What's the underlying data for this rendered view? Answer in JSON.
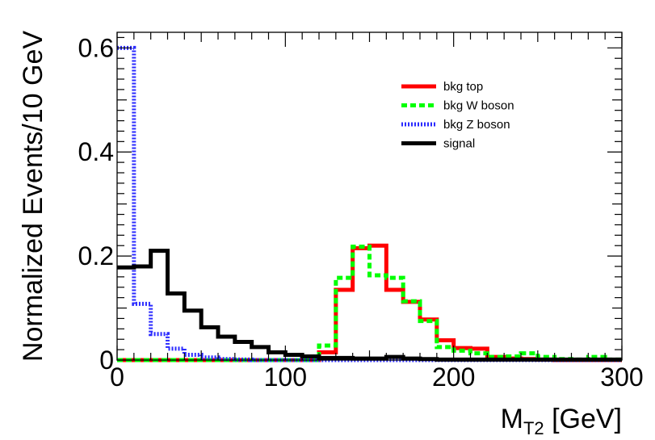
{
  "chart_data": {
    "type": "histogram",
    "xlabel_main": "M",
    "xlabel_sub": "T2",
    "xlabel_unit": " [GeV]",
    "ylabel": "Normalized Events/10 GeV",
    "xlim": [
      0,
      300
    ],
    "ylim": [
      0,
      0.63
    ],
    "bin_width": 10,
    "x_ticks": [
      0,
      100,
      200,
      300
    ],
    "x_tick_labels": [
      "0",
      "100",
      "200",
      "300"
    ],
    "y_ticks": [
      0,
      0.2,
      0.4,
      0.6
    ],
    "y_tick_labels": [
      "0",
      "0.2",
      "0.4",
      "0.6"
    ],
    "series": [
      {
        "name": "bkg top",
        "color": "#ff0000",
        "style": "solid",
        "values": [
          0,
          0,
          0,
          0,
          0,
          0,
          0,
          0,
          0,
          0,
          0,
          0,
          0.015,
          0.135,
          0.215,
          0.22,
          0.135,
          0.112,
          0.078,
          0.038,
          0.023,
          0.022,
          0.006,
          0.003,
          0.002,
          0.001,
          0,
          0,
          0,
          0
        ]
      },
      {
        "name": "bkg W boson",
        "color": "#00ff00",
        "style": "dashed",
        "values": [
          0,
          0,
          0,
          0,
          0,
          0,
          0,
          0,
          0,
          0,
          0,
          0,
          0.028,
          0.158,
          0.218,
          0.163,
          0.158,
          0.113,
          0.075,
          0.025,
          0.018,
          0.013,
          0.006,
          0.007,
          0.013,
          0.006,
          0.002,
          0.001,
          0.006,
          0.001
        ]
      },
      {
        "name": "bkg Z boson",
        "color": "#2a2aff",
        "style": "dotted",
        "values": [
          0.6,
          0.108,
          0.05,
          0.022,
          0.01,
          0.005,
          0.002,
          0.001,
          0,
          0,
          0,
          0,
          0,
          0,
          0,
          0,
          0,
          0,
          0,
          0,
          0,
          0,
          0,
          0,
          0,
          0,
          0,
          0,
          0,
          0
        ]
      },
      {
        "name": "signal",
        "color": "#000000",
        "style": "solid",
        "values": [
          0.178,
          0.18,
          0.21,
          0.128,
          0.095,
          0.063,
          0.045,
          0.035,
          0.025,
          0.015,
          0.01,
          0.007,
          0.004,
          0.004,
          0.003,
          0.003,
          0.006,
          0.003,
          0.002,
          0.001,
          0.001,
          0.001,
          0.001,
          0.001,
          0.001,
          0.001,
          0.001,
          0.001,
          0.001,
          0.001
        ]
      }
    ],
    "legend_position": "top-right"
  }
}
